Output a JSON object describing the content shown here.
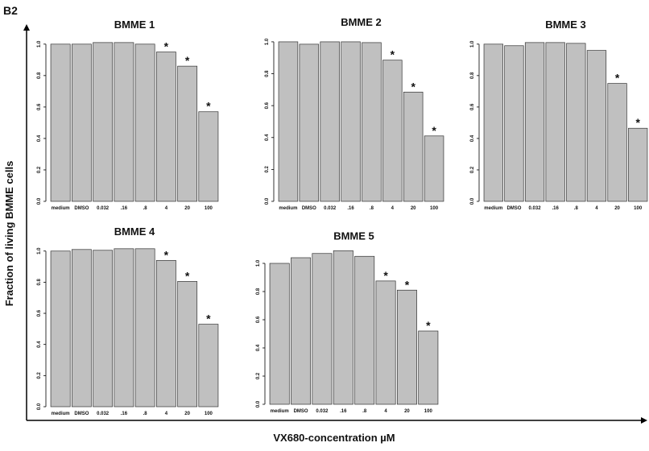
{
  "panel_label": "B2",
  "ylabel": "Fraction of living BMME cells",
  "xlabel": "VX680-concentration µM",
  "chart_data": [
    {
      "type": "bar",
      "title": "BMME 1",
      "color": "#c0c0c0",
      "categories": [
        "medium",
        "DMSO",
        "0.032",
        ".16",
        ".8",
        "4",
        "20",
        "100"
      ],
      "values": [
        1.0,
        1.0,
        1.01,
        1.01,
        1.0,
        0.95,
        0.86,
        0.57
      ],
      "markers": [
        null,
        null,
        null,
        null,
        null,
        "*",
        "*",
        "*"
      ],
      "ylim": [
        0,
        1.04
      ],
      "yticks": [
        {
          "value": 0,
          "label": "0.0"
        },
        {
          "value": 0.2,
          "label": "0.2"
        },
        {
          "value": 0.4,
          "label": "0.4"
        },
        {
          "value": 0.6,
          "label": "0.6"
        },
        {
          "value": 0.8,
          "label": "0.8"
        },
        {
          "value": 1,
          "label": "1.0"
        }
      ]
    },
    {
      "type": "bar",
      "title": "BMME 2",
      "color": "#c0c0c0",
      "categories": [
        "medium",
        "DMSO",
        "0.032",
        ".16",
        ".8",
        "4",
        "20",
        "100"
      ],
      "values": [
        1.0,
        0.985,
        1.0,
        1.0,
        0.995,
        0.885,
        0.685,
        0.41
      ],
      "markers": [
        null,
        null,
        null,
        null,
        null,
        "*",
        "*",
        "*"
      ],
      "ylim": [
        0,
        1.04
      ],
      "yticks": [
        {
          "value": 0,
          "label": "0.0"
        },
        {
          "value": 0.2,
          "label": "0.2"
        },
        {
          "value": 0.4,
          "label": "0.4"
        },
        {
          "value": 0.6,
          "label": "0.6"
        },
        {
          "value": 0.8,
          "label": "0.8"
        },
        {
          "value": 1,
          "label": "1.0"
        }
      ]
    },
    {
      "type": "bar",
      "title": "BMME 3",
      "color": "#c0c0c0",
      "categories": [
        "medium",
        "DMSO",
        "0.032",
        ".16",
        ".8",
        "4",
        "20",
        "100"
      ],
      "values": [
        1.0,
        0.99,
        1.01,
        1.01,
        1.005,
        0.96,
        0.75,
        0.465
      ],
      "markers": [
        null,
        null,
        null,
        null,
        null,
        null,
        "*",
        "*"
      ],
      "ylim": [
        0,
        1.04
      ],
      "yticks": [
        {
          "value": 0,
          "label": "0.0"
        },
        {
          "value": 0.2,
          "label": "0.2"
        },
        {
          "value": 0.4,
          "label": "0.4"
        },
        {
          "value": 0.6,
          "label": "0.6"
        },
        {
          "value": 0.8,
          "label": "0.8"
        },
        {
          "value": 1,
          "label": "1.0"
        }
      ]
    },
    {
      "type": "bar",
      "title": "BMME 4",
      "color": "#c0c0c0",
      "categories": [
        "medium",
        "DMSO",
        "0.032",
        ".16",
        ".8",
        "4",
        "20",
        "100"
      ],
      "values": [
        1.0,
        1.01,
        1.005,
        1.015,
        1.015,
        0.94,
        0.805,
        0.53
      ],
      "markers": [
        null,
        null,
        null,
        null,
        null,
        "*",
        "*",
        "*"
      ],
      "ylim": [
        0,
        1.04
      ],
      "yticks": [
        {
          "value": 0,
          "label": "0.0"
        },
        {
          "value": 0.2,
          "label": "0.2"
        },
        {
          "value": 0.4,
          "label": "0.4"
        },
        {
          "value": 0.6,
          "label": "0.6"
        },
        {
          "value": 0.8,
          "label": "0.8"
        },
        {
          "value": 1,
          "label": "1.0"
        }
      ]
    },
    {
      "type": "bar",
      "title": "BMME 5",
      "color": "#c0c0c0",
      "categories": [
        "medium",
        "DMSO",
        "0.032",
        ".16",
        ".8",
        "4",
        "20",
        "100"
      ],
      "values": [
        1.0,
        1.04,
        1.07,
        1.09,
        1.05,
        0.875,
        0.81,
        0.52
      ],
      "markers": [
        null,
        null,
        null,
        null,
        null,
        "*",
        "*",
        "*"
      ],
      "ylim": [
        0,
        1.1
      ],
      "yticks": [
        {
          "value": 0,
          "label": "0.0"
        },
        {
          "value": 0.2,
          "label": "0.2"
        },
        {
          "value": 0.4,
          "label": "0.4"
        },
        {
          "value": 0.6,
          "label": "0.6"
        },
        {
          "value": 0.8,
          "label": "0.8"
        },
        {
          "value": 1,
          "label": "1.0"
        }
      ]
    }
  ]
}
